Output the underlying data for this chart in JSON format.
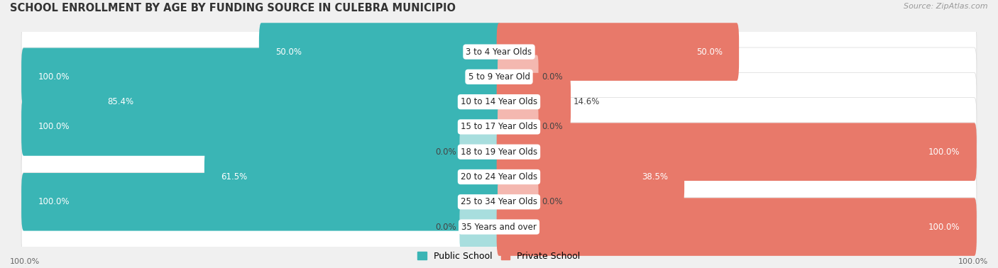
{
  "title": "SCHOOL ENROLLMENT BY AGE BY FUNDING SOURCE IN CULEBRA MUNICIPIO",
  "source": "Source: ZipAtlas.com",
  "categories": [
    "3 to 4 Year Olds",
    "5 to 9 Year Old",
    "10 to 14 Year Olds",
    "15 to 17 Year Olds",
    "18 to 19 Year Olds",
    "20 to 24 Year Olds",
    "25 to 34 Year Olds",
    "35 Years and over"
  ],
  "public_values": [
    50.0,
    100.0,
    85.4,
    100.0,
    0.0,
    61.5,
    100.0,
    0.0
  ],
  "private_values": [
    50.0,
    0.0,
    14.6,
    0.0,
    100.0,
    38.5,
    0.0,
    100.0
  ],
  "public_color": "#3ab5b5",
  "private_color": "#e8796a",
  "public_color_zero": "#a8dede",
  "private_color_zero": "#f4b8b0",
  "bg_color": "#f0f0f0",
  "bar_bg_color": "#ffffff",
  "row_border_color": "#d8d8d8",
  "title_fontsize": 10.5,
  "label_fontsize": 8.5,
  "value_fontsize": 8.5,
  "legend_fontsize": 9,
  "source_fontsize": 8,
  "footer_fontsize": 8
}
